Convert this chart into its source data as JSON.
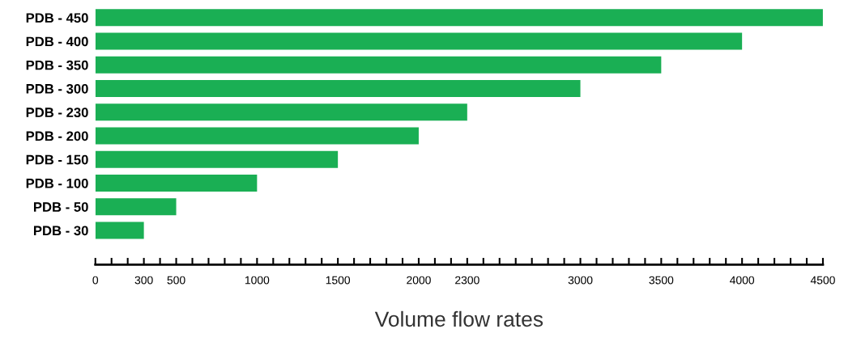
{
  "chart_data": {
    "type": "bar",
    "orientation": "horizontal",
    "xlabel": "Volume flow rates",
    "categories": [
      "PDB - 450",
      "PDB - 400",
      "PDB - 350",
      "PDB - 300",
      "PDB - 230",
      "PDB - 200",
      "PDB - 150",
      "PDB - 100",
      "PDB - 50",
      "PDB - 30"
    ],
    "values": [
      4500,
      4000,
      3500,
      3000,
      2300,
      2000,
      1500,
      1000,
      500,
      300
    ],
    "color": "#1aaf54",
    "xlim": [
      0,
      4500
    ],
    "xticks": [
      0,
      {
        "value": 100,
        "label": null
      },
      {
        "value": 200,
        "label": null
      },
      300,
      {
        "value": 400,
        "label": null
      },
      500,
      {
        "value": 600,
        "label": null
      },
      {
        "value": 700,
        "label": null
      },
      {
        "value": 800,
        "label": null
      },
      {
        "value": 900,
        "label": null
      },
      1000,
      {
        "value": 1100,
        "label": null
      },
      {
        "value": 1200,
        "label": null
      },
      {
        "value": 1300,
        "label": null
      },
      {
        "value": 1400,
        "label": null
      },
      1500,
      {
        "value": 1600,
        "label": null
      },
      {
        "value": 1700,
        "label": null
      },
      {
        "value": 1800,
        "label": null
      },
      {
        "value": 1900,
        "label": null
      },
      2000,
      {
        "value": 2100,
        "label": null
      },
      {
        "value": 2200,
        "label": null
      },
      2300,
      {
        "value": 2400,
        "label": null
      },
      {
        "value": 2500,
        "label": null
      },
      {
        "value": 2600,
        "label": null
      },
      {
        "value": 2700,
        "label": null
      },
      {
        "value": 2800,
        "label": null
      },
      {
        "value": 2900,
        "label": null
      },
      3000,
      {
        "value": 3100,
        "label": null
      },
      {
        "value": 3200,
        "label": null
      },
      {
        "value": 3300,
        "label": null
      },
      {
        "value": 3400,
        "label": null
      },
      3500,
      {
        "value": 3600,
        "label": null
      },
      {
        "value": 3700,
        "label": null
      },
      {
        "value": 3800,
        "label": null
      },
      {
        "value": 3900,
        "label": null
      },
      4000,
      {
        "value": 4100,
        "label": null
      },
      {
        "value": 4200,
        "label": null
      },
      {
        "value": 4300,
        "label": null
      },
      {
        "value": 4400,
        "label": null
      },
      4500
    ],
    "grid": false,
    "legend": false
  }
}
